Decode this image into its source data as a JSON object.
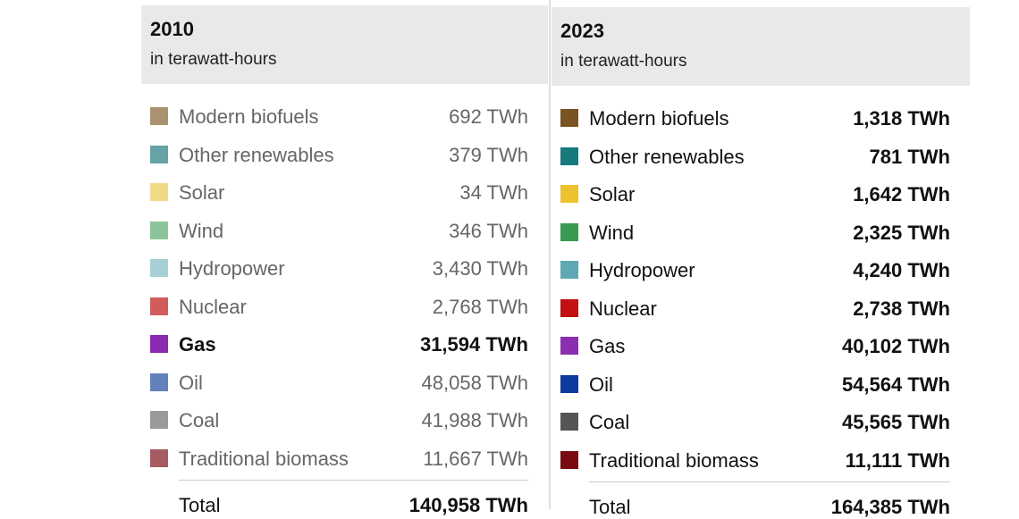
{
  "panels": [
    {
      "title": "2010",
      "subtitle": "in terawatt-hours",
      "muted": true,
      "rows": [
        {
          "label": "Modern biofuels",
          "value": "692 TWh",
          "color": "#a8926f"
        },
        {
          "label": "Other renewables",
          "value": "379 TWh",
          "color": "#66a3a6"
        },
        {
          "label": "Solar",
          "value": "34 TWh",
          "color": "#f1da85"
        },
        {
          "label": "Wind",
          "value": "346 TWh",
          "color": "#8cc49a"
        },
        {
          "label": "Hydropower",
          "value": "3,430 TWh",
          "color": "#a6d0d5"
        },
        {
          "label": "Nuclear",
          "value": "2,768 TWh",
          "color": "#d15c5c"
        },
        {
          "label": "Gas",
          "value": "31,594 TWh",
          "color": "#8a2ab3",
          "highlighted": true
        },
        {
          "label": "Oil",
          "value": "48,058 TWh",
          "color": "#6282b9"
        },
        {
          "label": "Coal",
          "value": "41,988 TWh",
          "color": "#9a9a9a"
        },
        {
          "label": "Traditional biomass",
          "value": "11,667 TWh",
          "color": "#a65a62"
        }
      ],
      "total": {
        "label": "Total",
        "value": "140,958 TWh"
      }
    },
    {
      "title": "2023",
      "subtitle": "in terawatt-hours",
      "muted": false,
      "rows": [
        {
          "label": "Modern biofuels",
          "value": "1,318 TWh",
          "color": "#7a5322"
        },
        {
          "label": "Other renewables",
          "value": "781 TWh",
          "color": "#167a7f"
        },
        {
          "label": "Solar",
          "value": "1,642 TWh",
          "color": "#eec22e"
        },
        {
          "label": "Wind",
          "value": "2,325 TWh",
          "color": "#3a9a50"
        },
        {
          "label": "Hydropower",
          "value": "4,240 TWh",
          "color": "#5ea9b4"
        },
        {
          "label": "Nuclear",
          "value": "2,738 TWh",
          "color": "#c41010"
        },
        {
          "label": "Gas",
          "value": "40,102 TWh",
          "color": "#8b2fb0"
        },
        {
          "label": "Oil",
          "value": "54,564 TWh",
          "color": "#0b3aa0"
        },
        {
          "label": "Coal",
          "value": "45,565 TWh",
          "color": "#555555"
        },
        {
          "label": "Traditional biomass",
          "value": "11,111 TWh",
          "color": "#7a0a12"
        }
      ],
      "total": {
        "label": "Total",
        "value": "164,385 TWh"
      }
    }
  ]
}
